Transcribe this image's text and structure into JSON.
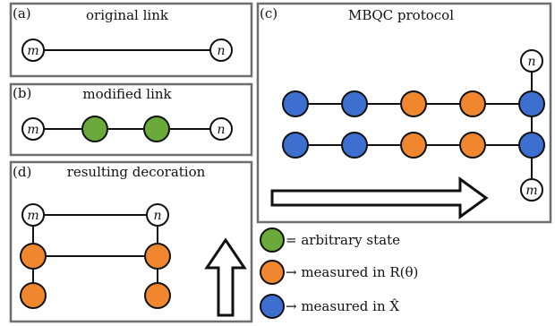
{
  "panels": {
    "a": {
      "tag": "(a)",
      "title": "original link"
    },
    "b": {
      "tag": "(b)",
      "title": "modified link"
    },
    "c": {
      "tag": "(c)",
      "title": "MBQC protocol"
    },
    "d": {
      "tag": "(d)",
      "title": "resulting decoration"
    }
  },
  "node_labels": {
    "m": "m",
    "n": "n"
  },
  "legend": {
    "arbitrary": "= arbitrary state",
    "measured_r": "→ measured in R(θ)",
    "measured_x": "→ measured in X̂"
  },
  "colors": {
    "frame": "#6e6e6e",
    "green": "#6aaa3a",
    "orange": "#f0862e",
    "blue": "#3d6fd0",
    "white": "#ffffff",
    "line": "#111111"
  }
}
